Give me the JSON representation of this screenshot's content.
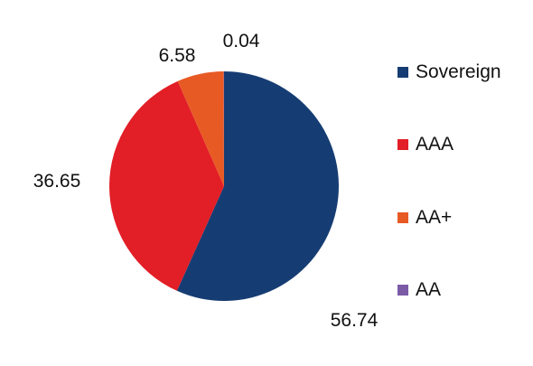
{
  "chart_data": {
    "type": "pie",
    "title": "",
    "slices": [
      {
        "label": "Sovereign",
        "value": 56.74,
        "value_label": "56.74",
        "color": "#163d73"
      },
      {
        "label": "AAA",
        "value": 36.65,
        "value_label": "36.65",
        "color": "#e21e26"
      },
      {
        "label": "AA+",
        "value": 6.58,
        "value_label": "6.58",
        "color": "#e85a24"
      },
      {
        "label": "AA",
        "value": 0.04,
        "value_label": "0.04",
        "color": "#7b5aa6"
      }
    ],
    "legend": {
      "position": "right",
      "entries": [
        "Sovereign",
        "AAA",
        "AA+",
        "AA"
      ]
    }
  }
}
